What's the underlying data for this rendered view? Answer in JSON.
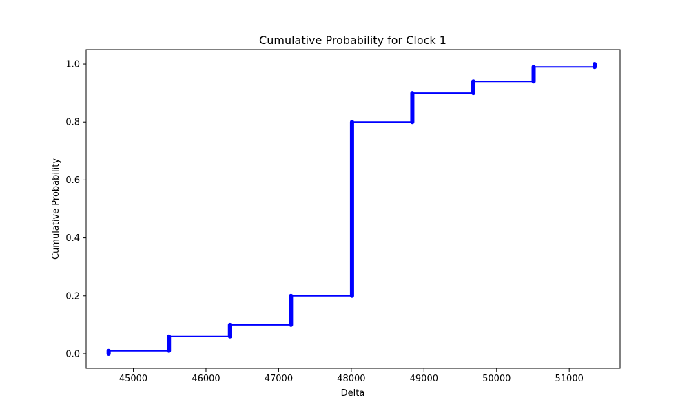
{
  "chart_data": {
    "type": "line",
    "title": "Cumulative Probability for Clock 1",
    "xlabel": "Delta",
    "ylabel": "Cumulative Probability",
    "xlim": [
      44350,
      51700
    ],
    "ylim": [
      -0.05,
      1.05
    ],
    "xticks": [
      45000,
      46000,
      47000,
      48000,
      49000,
      50000,
      51000
    ],
    "yticks": [
      0.0,
      0.2,
      0.4,
      0.6,
      0.8,
      1.0
    ],
    "xtick_labels": [
      "45000",
      "46000",
      "47000",
      "48000",
      "49000",
      "50000",
      "51000"
    ],
    "ytick_labels": [
      "0.0",
      "0.2",
      "0.4",
      "0.6",
      "0.8",
      "1.0"
    ],
    "grid": false,
    "series": [
      {
        "color": "#0000ff",
        "marker": "circle",
        "steps": [
          {
            "x": 44660,
            "y_from": 0.0,
            "y_to": 0.01
          },
          {
            "x": 45490,
            "y_from": 0.01,
            "y_to": 0.06
          },
          {
            "x": 46330,
            "y_from": 0.06,
            "y_to": 0.1
          },
          {
            "x": 47170,
            "y_from": 0.1,
            "y_to": 0.2
          },
          {
            "x": 48010,
            "y_from": 0.2,
            "y_to": 0.8
          },
          {
            "x": 48840,
            "y_from": 0.8,
            "y_to": 0.9
          },
          {
            "x": 49680,
            "y_from": 0.9,
            "y_to": 0.94
          },
          {
            "x": 50510,
            "y_from": 0.94,
            "y_to": 0.99
          },
          {
            "x": 51350,
            "y_from": 0.99,
            "y_to": 1.0
          }
        ]
      }
    ]
  }
}
